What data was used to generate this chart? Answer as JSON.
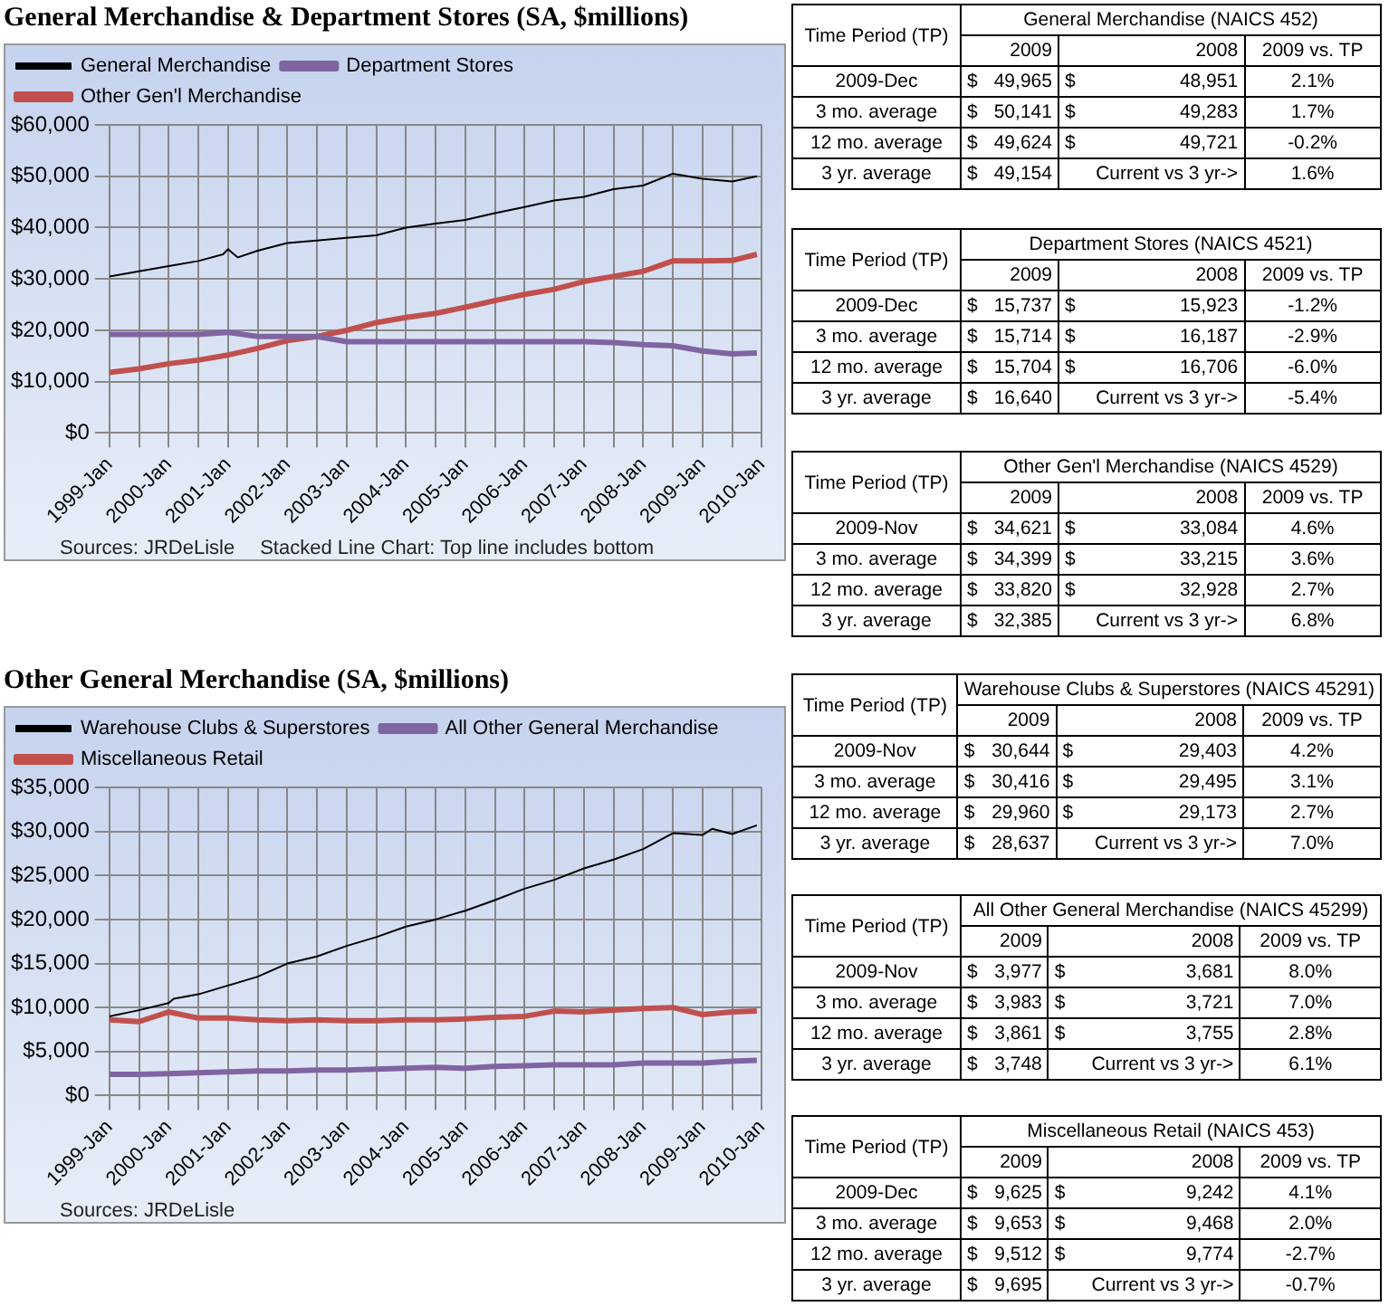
{
  "chart_data": [
    {
      "type": "line",
      "title": "General Merchandise & Department Stores (SA, $millions)",
      "x": [
        "1999-01",
        "1999-07",
        "2000-01",
        "2000-07",
        "2001-01",
        "2001-07",
        "2002-01",
        "2002-07",
        "2003-01",
        "2003-07",
        "2004-01",
        "2004-07",
        "2005-01",
        "2005-07",
        "2006-01",
        "2006-07",
        "2007-01",
        "2007-07",
        "2008-01",
        "2008-07",
        "2009-01",
        "2009-07",
        "2009-12"
      ],
      "series": [
        {
          "name": "General Merchandise",
          "color": "#000000",
          "x": [
            "1999-01",
            "1999-07",
            "2000-01",
            "2000-07",
            "2000-12",
            "2001-01",
            "2001-03",
            "2001-07",
            "2002-01",
            "2002-07",
            "2003-01",
            "2003-07",
            "2004-01",
            "2004-07",
            "2005-01",
            "2005-07",
            "2006-01",
            "2006-07",
            "2007-01",
            "2007-07",
            "2008-01",
            "2008-07",
            "2009-01",
            "2009-07",
            "2009-12"
          ],
          "values": [
            30500,
            31500,
            32500,
            33500,
            34800,
            35800,
            34200,
            35500,
            37000,
            37500,
            38000,
            38500,
            40000,
            40800,
            41500,
            42800,
            44000,
            45300,
            46000,
            47500,
            48200,
            50500,
            49500,
            49000,
            50000
          ]
        },
        {
          "name": "Department Stores",
          "color": "#8064a2",
          "values": [
            19200,
            19200,
            19200,
            19200,
            19600,
            18800,
            18800,
            18800,
            17800,
            17800,
            17800,
            17800,
            17800,
            17800,
            17800,
            17800,
            17800,
            17600,
            17200,
            17000,
            16000,
            15400,
            15600
          ]
        },
        {
          "name": "Other Gen'l Merchandise",
          "color": "#c0504d",
          "values": [
            11800,
            12500,
            13500,
            14200,
            15200,
            16500,
            18000,
            18800,
            20000,
            21500,
            22500,
            23300,
            24500,
            25800,
            27000,
            28000,
            29500,
            30500,
            31500,
            33500,
            33500,
            33600,
            34800
          ]
        }
      ],
      "xlim": [
        "1999-01",
        "2010-01"
      ],
      "xticks": [
        {
          "value": "1999-01",
          "label": "1999-Jan"
        },
        {
          "value": "1999-07",
          "label": null
        },
        {
          "value": "2000-01",
          "label": "2000-Jan"
        },
        {
          "value": "2000-07",
          "label": null
        },
        {
          "value": "2001-01",
          "label": "2001-Jan"
        },
        {
          "value": "2001-07",
          "label": null
        },
        {
          "value": "2002-01",
          "label": "2002-Jan"
        },
        {
          "value": "2002-07",
          "label": null
        },
        {
          "value": "2003-01",
          "label": "2003-Jan"
        },
        {
          "value": "2003-07",
          "label": null
        },
        {
          "value": "2004-01",
          "label": "2004-Jan"
        },
        {
          "value": "2004-07",
          "label": null
        },
        {
          "value": "2005-01",
          "label": "2005-Jan"
        },
        {
          "value": "2005-07",
          "label": null
        },
        {
          "value": "2006-01",
          "label": "2006-Jan"
        },
        {
          "value": "2006-07",
          "label": null
        },
        {
          "value": "2007-01",
          "label": "2007-Jan"
        },
        {
          "value": "2007-07",
          "label": null
        },
        {
          "value": "2008-01",
          "label": "2008-Jan"
        },
        {
          "value": "2008-07",
          "label": null
        },
        {
          "value": "2009-01",
          "label": "2009-Jan"
        },
        {
          "value": "2009-07",
          "label": null
        },
        {
          "value": "2010-01",
          "label": "2010-Jan"
        }
      ],
      "ylim": [
        0,
        60000
      ],
      "yticks": [
        {
          "value": 0,
          "label": "$0"
        },
        {
          "value": 10000,
          "label": "$10,000"
        },
        {
          "value": 20000,
          "label": "$20,000"
        },
        {
          "value": 30000,
          "label": "$30,000"
        },
        {
          "value": 40000,
          "label": "$40,000"
        },
        {
          "value": 50000,
          "label": "$50,000"
        },
        {
          "value": 60000,
          "label": "$60,000"
        }
      ],
      "grid": true,
      "legend": "top",
      "marker": "none",
      "annotations": [
        "Sources: JRDeLisle",
        "Stacked Line Chart: Top line includes bottom"
      ]
    },
    {
      "type": "line",
      "title": "Other General Merchandise (SA, $millions)",
      "x": [
        "1999-01",
        "1999-07",
        "2000-01",
        "2000-07",
        "2001-01",
        "2001-07",
        "2002-01",
        "2002-07",
        "2003-01",
        "2003-07",
        "2004-01",
        "2004-07",
        "2005-01",
        "2005-07",
        "2006-01",
        "2006-07",
        "2007-01",
        "2007-07",
        "2008-01",
        "2008-07",
        "2009-01",
        "2009-07",
        "2009-12"
      ],
      "series": [
        {
          "name": "Warehouse Clubs & Superstores",
          "color": "#000000",
          "x": [
            "1999-01",
            "1999-07",
            "2000-01",
            "2000-02",
            "2000-07",
            "2001-01",
            "2001-07",
            "2002-01",
            "2002-07",
            "2003-01",
            "2003-07",
            "2004-01",
            "2004-07",
            "2005-01",
            "2005-07",
            "2006-01",
            "2006-07",
            "2007-01",
            "2007-07",
            "2008-01",
            "2008-07",
            "2009-01",
            "2009-03",
            "2009-07",
            "2009-12"
          ],
          "values": [
            9000,
            9700,
            10500,
            11000,
            11500,
            12500,
            13500,
            15000,
            15800,
            17000,
            18000,
            19200,
            20000,
            21000,
            22200,
            23500,
            24500,
            25800,
            26800,
            28000,
            29800,
            29600,
            30300,
            29700,
            30700
          ]
        },
        {
          "name": "All Other General Merchandise",
          "color": "#8064a2",
          "values": [
            2400,
            2400,
            2500,
            2600,
            2700,
            2800,
            2800,
            2900,
            2900,
            3000,
            3100,
            3200,
            3100,
            3300,
            3400,
            3500,
            3500,
            3500,
            3700,
            3700,
            3700,
            3900,
            4000
          ]
        },
        {
          "name": "Miscellaneous Retail",
          "color": "#c0504d",
          "values": [
            8600,
            8400,
            9500,
            8800,
            8800,
            8600,
            8500,
            8600,
            8500,
            8500,
            8600,
            8600,
            8700,
            8900,
            9000,
            9600,
            9500,
            9700,
            9900,
            10000,
            9200,
            9500,
            9600
          ]
        }
      ],
      "xlim": [
        "1999-01",
        "2010-01"
      ],
      "xticks": [
        {
          "value": "1999-01",
          "label": "1999-Jan"
        },
        {
          "value": "1999-07",
          "label": null
        },
        {
          "value": "2000-01",
          "label": "2000-Jan"
        },
        {
          "value": "2000-07",
          "label": null
        },
        {
          "value": "2001-01",
          "label": "2001-Jan"
        },
        {
          "value": "2001-07",
          "label": null
        },
        {
          "value": "2002-01",
          "label": "2002-Jan"
        },
        {
          "value": "2002-07",
          "label": null
        },
        {
          "value": "2003-01",
          "label": "2003-Jan"
        },
        {
          "value": "2003-07",
          "label": null
        },
        {
          "value": "2004-01",
          "label": "2004-Jan"
        },
        {
          "value": "2004-07",
          "label": null
        },
        {
          "value": "2005-01",
          "label": "2005-Jan"
        },
        {
          "value": "2005-07",
          "label": null
        },
        {
          "value": "2006-01",
          "label": "2006-Jan"
        },
        {
          "value": "2006-07",
          "label": null
        },
        {
          "value": "2007-01",
          "label": "2007-Jan"
        },
        {
          "value": "2007-07",
          "label": null
        },
        {
          "value": "2008-01",
          "label": "2008-Jan"
        },
        {
          "value": "2008-07",
          "label": null
        },
        {
          "value": "2009-01",
          "label": "2009-Jan"
        },
        {
          "value": "2009-07",
          "label": null
        },
        {
          "value": "2010-01",
          "label": "2010-Jan"
        }
      ],
      "ylim": [
        0,
        35000
      ],
      "yticks": [
        {
          "value": 0,
          "label": "$0"
        },
        {
          "value": 5000,
          "label": "$5,000"
        },
        {
          "value": 10000,
          "label": "$10,000"
        },
        {
          "value": 15000,
          "label": "$15,000"
        },
        {
          "value": 20000,
          "label": "$20,000"
        },
        {
          "value": 25000,
          "label": "$25,000"
        },
        {
          "value": 30000,
          "label": "$30,000"
        },
        {
          "value": 35000,
          "label": "$35,000"
        }
      ],
      "grid": true,
      "legend": "top",
      "marker": "none",
      "annotations": [
        "Sources: JRDeLisle"
      ]
    },
    {
      "type": "other",
      "title": "General Merchandise (NAICS 452)",
      "annotations": [
        "Time Period (TP)",
        "2009",
        "2008",
        "2009 vs. TP",
        "2009-Dec",
        "$ 49,965",
        "$ 48,951",
        "2.1%",
        "3 mo. average",
        "$ 50,141",
        "$ 49,283",
        "1.7%",
        "12 mo. average",
        "$ 49,624",
        "$ 49,721",
        "-0.2%",
        "3 yr. average",
        "$ 49,154",
        "Current vs 3 yr->",
        "1.6%"
      ]
    },
    {
      "type": "other",
      "title": "Department Stores (NAICS 4521)",
      "annotations": [
        "Time Period (TP)",
        "2009",
        "2008",
        "2009 vs. TP",
        "2009-Dec",
        "$ 15,737",
        "$ 15,923",
        "-1.2%",
        "3 mo. average",
        "$ 15,714",
        "$ 16,187",
        "-2.9%",
        "12 mo. average",
        "$ 15,704",
        "$ 16,706",
        "-6.0%",
        "3 yr. average",
        "$ 16,640",
        "Current vs 3 yr->",
        "-5.4%"
      ]
    },
    {
      "type": "other",
      "title": "Other Gen'l Merchandise (NAICS 4529)",
      "annotations": [
        "Time Period (TP)",
        "2009",
        "2008",
        "2009 vs. TP",
        "2009-Nov",
        "$ 34,621",
        "$ 33,084",
        "4.6%",
        "3 mo. average",
        "$ 34,399",
        "$ 33,215",
        "3.6%",
        "12 mo. average",
        "$ 33,820",
        "$ 32,928",
        "2.7%",
        "3 yr. average",
        "$ 32,385",
        "Current vs 3 yr->",
        "6.8%"
      ]
    },
    {
      "type": "other",
      "title": "Warehouse Clubs & Superstores (NAICS 45291)",
      "annotations": [
        "Time Period (TP)",
        "2009",
        "2008",
        "2009 vs. TP",
        "2009-Nov",
        "$ 30,644",
        "$ 29,403",
        "4.2%",
        "3 mo. average",
        "$ 30,416",
        "$ 29,495",
        "3.1%",
        "12 mo. average",
        "$ 29,960",
        "$ 29,173",
        "2.7%",
        "3 yr. average",
        "$ 28,637",
        "Current vs 3 yr->",
        "7.0%"
      ]
    },
    {
      "type": "other",
      "title": "All Other General Merchandise (NAICS 45299)",
      "annotations": [
        "Time Period (TP)",
        "2009",
        "2008",
        "2009 vs. TP",
        "2009-Nov",
        "$ 3,977",
        "$ 3,681",
        "8.0%",
        "3 mo. average",
        "$ 3,983",
        "$ 3,721",
        "7.0%",
        "12 mo. average",
        "$ 3,861",
        "$ 3,755",
        "2.8%",
        "3 yr. average",
        "$ 3,748",
        "Current vs 3 yr->",
        "6.1%"
      ]
    },
    {
      "type": "other",
      "title": "Miscellaneous Retail (NAICS 453)",
      "annotations": [
        "Time Period (TP)",
        "2009",
        "2008",
        "2009 vs. TP",
        "2009-Dec",
        "$ 9,625",
        "$ 9,242",
        "4.1%",
        "3 mo. average",
        "$ 9,653",
        "$ 9,468",
        "2.0%",
        "12 mo. average",
        "$ 9,512",
        "$ 9,774",
        "-2.7%",
        "3 yr. average",
        "$ 9,695",
        "Current vs 3 yr->",
        "-0.7%"
      ]
    }
  ]
}
